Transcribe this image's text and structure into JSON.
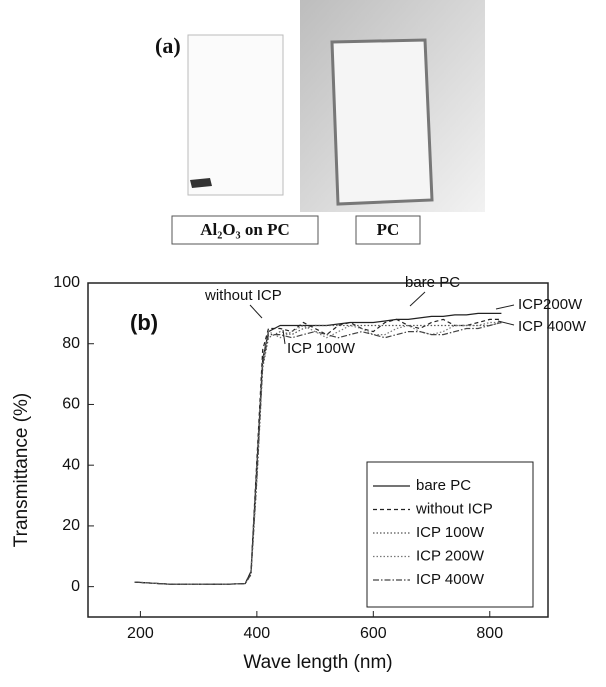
{
  "photo": {
    "label": "(a)",
    "captions": [
      "Al₂O₃ on PC",
      "PC"
    ]
  },
  "chart_data": {
    "type": "line",
    "panel_label": "(b)",
    "x_label": "Wave length (nm)",
    "y_label": "Transmittance (%)",
    "xlim": [
      110,
      900
    ],
    "ylim": [
      -10,
      100
    ],
    "xticks": [
      200,
      400,
      600,
      800
    ],
    "yticks": [
      0,
      20,
      40,
      60,
      80,
      100
    ],
    "annotations": [
      "without ICP",
      "bare PC",
      "ICP200W",
      "ICP 400W",
      "ICP 100W"
    ],
    "x": [
      190,
      250,
      300,
      350,
      380,
      390,
      400,
      410,
      420,
      440,
      460,
      480,
      500,
      520,
      540,
      560,
      580,
      600,
      620,
      640,
      660,
      680,
      700,
      720,
      740,
      760,
      780,
      800,
      820
    ],
    "series": [
      {
        "name": "bare PC",
        "color": "#222222",
        "line_style": "solid",
        "values": [
          1.5,
          0.8,
          0.8,
          0.8,
          1,
          5,
          40,
          75,
          84,
          86,
          86,
          86,
          86,
          86,
          86.5,
          87,
          87,
          87,
          87.5,
          88,
          88,
          88.5,
          89,
          89,
          89.5,
          89.5,
          90,
          90,
          90
        ]
      },
      {
        "name": "without ICP",
        "color": "#222222",
        "line_style": "dashed",
        "values": [
          1.5,
          0.8,
          0.8,
          0.8,
          1,
          5,
          42,
          78,
          85,
          85,
          84,
          87,
          85,
          83,
          86,
          87,
          85,
          84,
          87,
          88,
          86,
          85,
          87,
          88,
          86,
          86,
          87,
          88,
          88
        ]
      },
      {
        "name": "ICP 100W",
        "color": "#555555",
        "line_style": "dotted",
        "values": [
          1.5,
          0.8,
          0.8,
          0.8,
          1,
          4,
          35,
          72,
          82,
          84,
          83,
          85,
          86,
          86,
          86,
          86,
          86,
          86,
          86,
          86,
          86,
          86,
          86,
          86,
          86,
          86,
          86,
          86,
          87
        ]
      },
      {
        "name": "ICP 200W",
        "color": "#777777",
        "line_style": "dotted",
        "values": [
          1.5,
          0.8,
          0.8,
          0.8,
          1,
          4,
          38,
          74,
          84,
          82,
          84,
          86,
          84,
          82,
          84,
          86,
          85,
          83,
          83,
          85,
          86,
          84,
          83,
          84,
          86,
          86,
          86,
          87,
          87
        ]
      },
      {
        "name": "ICP 400W",
        "color": "#444444",
        "line_style": "dashdot",
        "values": [
          1.5,
          0.8,
          0.8,
          0.8,
          1,
          4,
          36,
          73,
          83,
          83,
          82,
          83,
          84,
          83,
          82,
          83,
          84,
          83,
          82,
          83,
          84,
          84,
          83,
          83,
          84,
          85,
          85,
          86,
          87
        ]
      }
    ]
  }
}
